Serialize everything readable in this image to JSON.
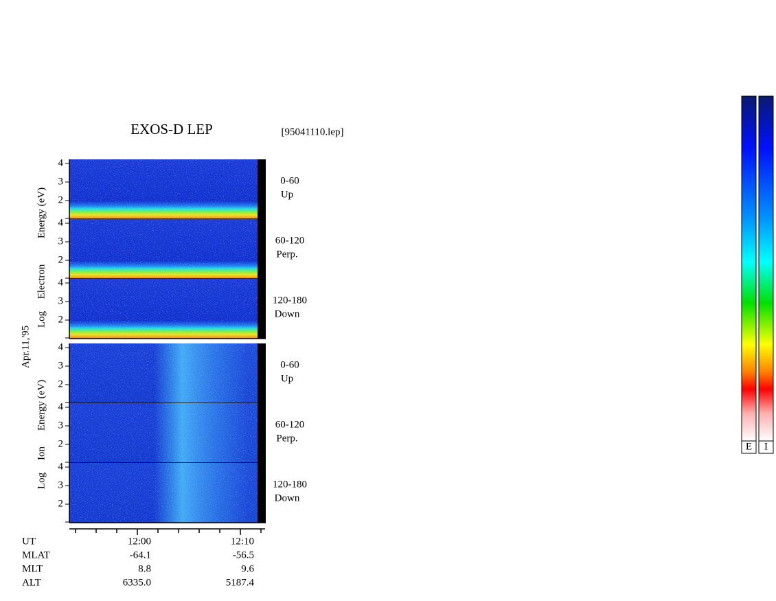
{
  "title": "EXOS-D LEP",
  "file": "[95041110.lep]",
  "date": "Apr.11,'95",
  "groups": [
    {
      "axis_label": [
        "Log",
        "Electron",
        "Energy (eV)"
      ],
      "panels": [
        {
          "range": "0-60",
          "direction": "Up",
          "ticks": [
            4,
            3,
            2
          ]
        },
        {
          "range": "60-120",
          "direction": "Perp.",
          "ticks": [
            4,
            3,
            2
          ]
        },
        {
          "range": "120-180",
          "direction": "Down",
          "ticks": [
            4,
            3,
            2
          ]
        }
      ]
    },
    {
      "axis_label": [
        "Log",
        "Ion",
        "Energy (eV)"
      ],
      "panels": [
        {
          "range": "0-60",
          "direction": "Up",
          "ticks": [
            4,
            3,
            2
          ]
        },
        {
          "range": "60-120",
          "direction": "Perp.",
          "ticks": [
            4,
            3,
            2
          ]
        },
        {
          "range": "120-180",
          "direction": "Down",
          "ticks": [
            4,
            3,
            2
          ]
        }
      ]
    }
  ],
  "rows": [
    {
      "label": "UT",
      "values": [
        "12:00",
        "12:10"
      ]
    },
    {
      "label": "MLAT",
      "values": [
        "-64.1",
        "-56.5"
      ]
    },
    {
      "label": "MLT",
      "values": [
        "8.8",
        "9.6"
      ]
    },
    {
      "label": "ALT",
      "values": [
        "6335.0",
        "5187.4"
      ]
    }
  ],
  "colorbars": [
    "E",
    "I"
  ]
}
